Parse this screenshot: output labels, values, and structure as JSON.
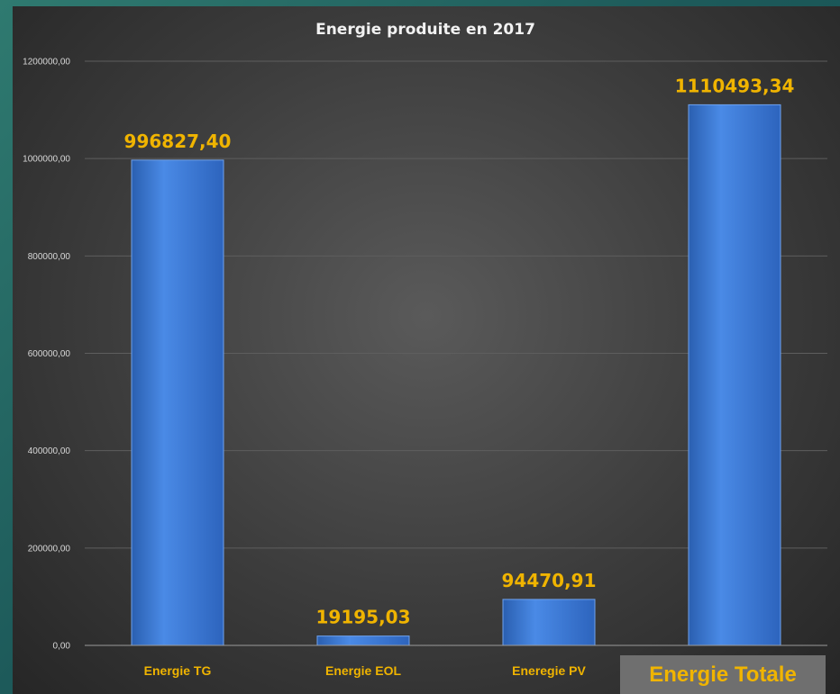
{
  "chart_data": {
    "type": "bar",
    "title": "Energie produite en 2017",
    "categories": [
      "Energie TG",
      "Energie EOL",
      "Eneregie PV",
      "Energie Totale"
    ],
    "values": [
      996827.4,
      19195.03,
      94470.91,
      1110493.34
    ],
    "value_labels": [
      "996827,40",
      "19195,03",
      "94470,91",
      "1110493,34"
    ],
    "ylim": [
      0,
      1200000
    ],
    "yticks": [
      0,
      200000,
      400000,
      600000,
      800000,
      1000000,
      1200000
    ],
    "ytick_labels": [
      "0,00",
      "200000,00",
      "400000,00",
      "600000,00",
      "800000,00",
      "1000000,00",
      "1200000,00"
    ],
    "xlabel": "",
    "ylabel": "",
    "grid": true,
    "legend": false,
    "colors": {
      "bar": "#3f7fd8",
      "label": "#f0b400",
      "background": "#3a3a3a"
    }
  }
}
